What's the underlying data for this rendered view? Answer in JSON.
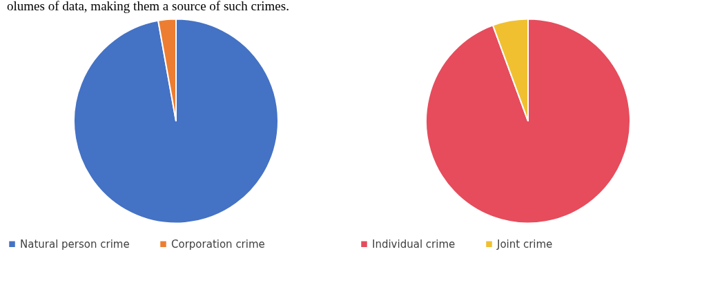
{
  "chart_data": [
    {
      "type": "pie",
      "categories": [
        "Natural person crime",
        "Corporation crime"
      ],
      "values": [
        97.2,
        2.8
      ],
      "colors": [
        "#4472c4",
        "#ed7d31"
      ],
      "legend": "bottom",
      "annotations": [
        "olumes of data, making them a source of such crimes."
      ]
    },
    {
      "type": "pie",
      "categories": [
        "Individual crime",
        "Joint crime"
      ],
      "values": [
        94.4,
        5.6
      ],
      "colors": [
        "#e64c5c",
        "#f0c030"
      ],
      "legend": "bottom"
    }
  ]
}
